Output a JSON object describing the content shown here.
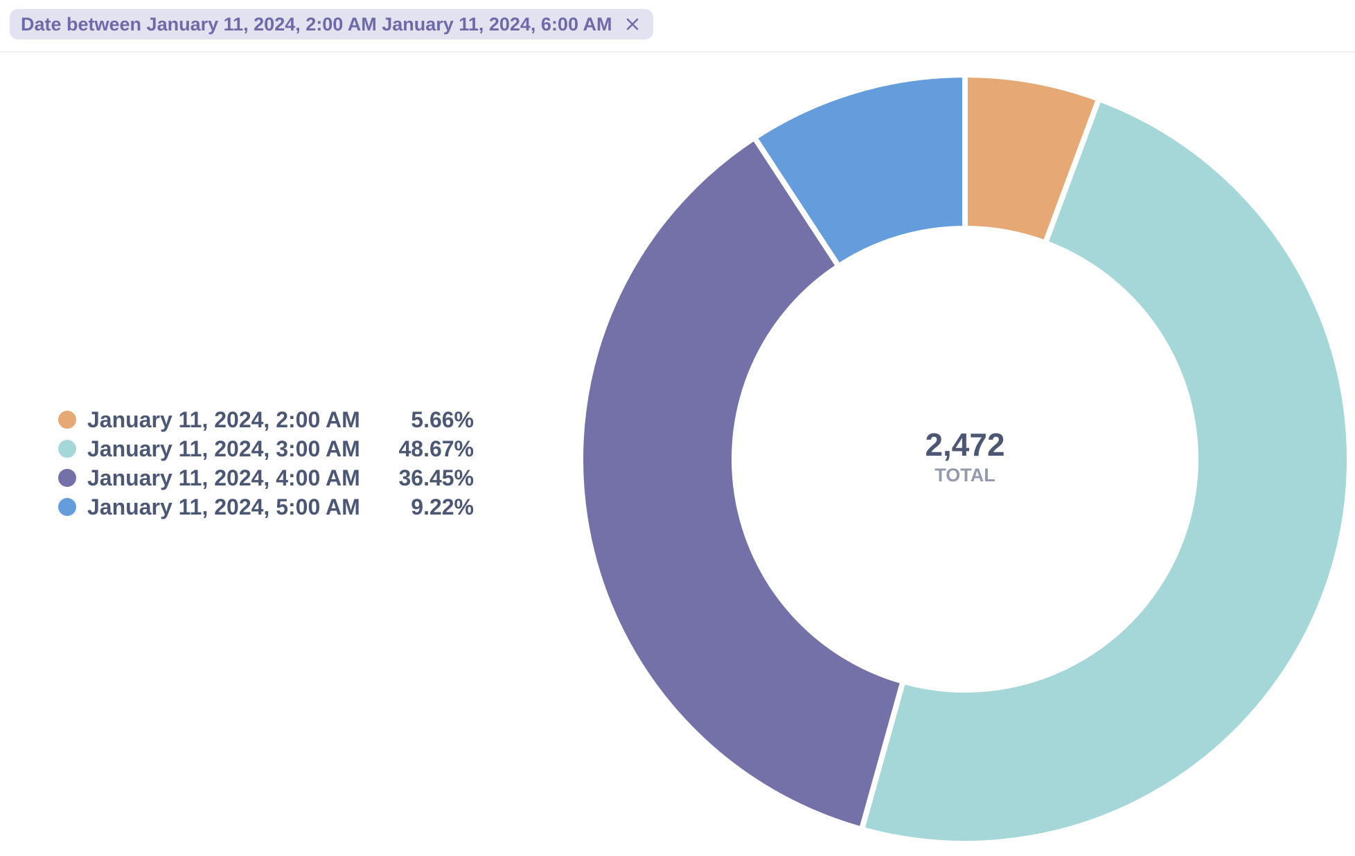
{
  "filter": {
    "label": "Date between January 11, 2024, 2:00 AM January 11, 2024, 6:00 AM",
    "close_icon": "close-icon"
  },
  "chart_data": {
    "type": "pie",
    "variant": "donut",
    "categories": [
      "January 11, 2024, 2:00 AM",
      "January 11, 2024, 3:00 AM",
      "January 11, 2024, 4:00 AM",
      "January 11, 2024, 5:00 AM"
    ],
    "values": [
      140,
      1203,
      901,
      228
    ],
    "percent_labels": [
      "5.66%",
      "48.67%",
      "36.45%",
      "9.22%"
    ],
    "colors": [
      "#E6A975",
      "#A6D7D8",
      "#7371A8",
      "#659CDC"
    ],
    "total": {
      "value": "2,472",
      "label": "TOTAL"
    },
    "legend_position": "left"
  }
}
